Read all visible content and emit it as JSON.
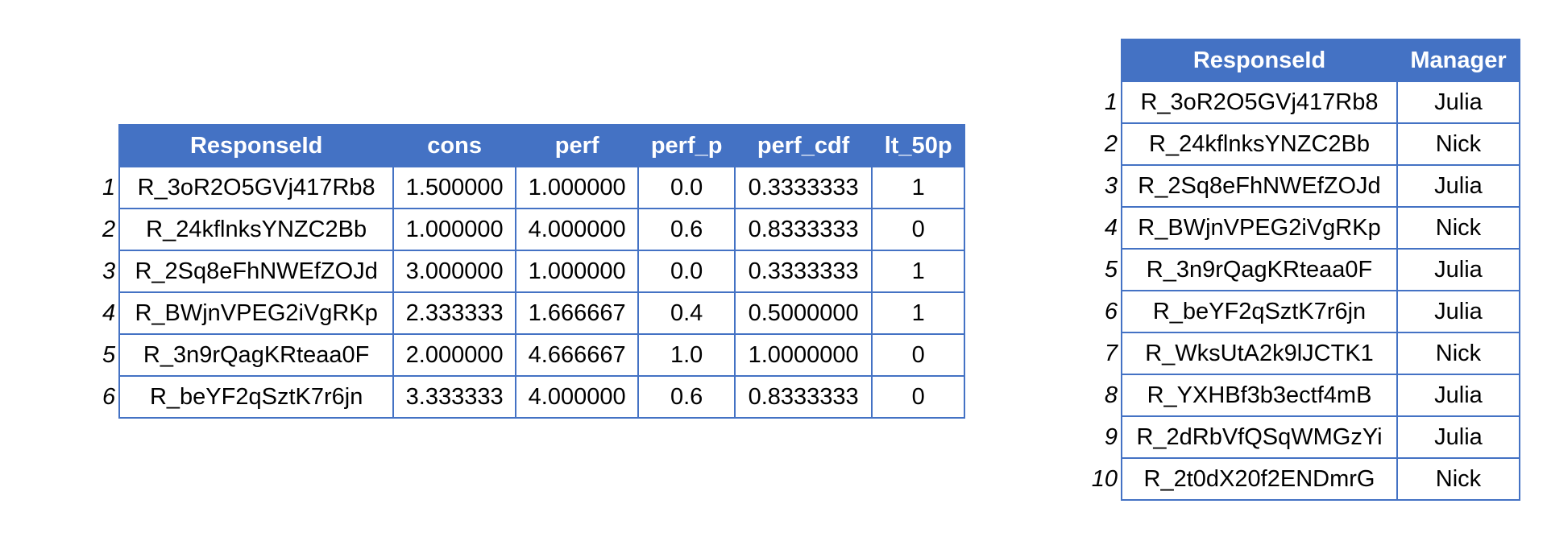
{
  "left_table": {
    "columns": [
      "ResponseId",
      "cons",
      "perf",
      "perf_p",
      "perf_cdf",
      "lt_50p"
    ],
    "rows": [
      {
        "index": "1",
        "cells": [
          "R_3oR2O5GVj417Rb8",
          "1.500000",
          "1.000000",
          "0.0",
          "0.3333333",
          "1"
        ]
      },
      {
        "index": "2",
        "cells": [
          "R_24kflnksYNZC2Bb",
          "1.000000",
          "4.000000",
          "0.6",
          "0.8333333",
          "0"
        ]
      },
      {
        "index": "3",
        "cells": [
          "R_2Sq8eFhNWEfZOJd",
          "3.000000",
          "1.000000",
          "0.0",
          "0.3333333",
          "1"
        ]
      },
      {
        "index": "4",
        "cells": [
          "R_BWjnVPEG2iVgRKp",
          "2.333333",
          "1.666667",
          "0.4",
          "0.5000000",
          "1"
        ]
      },
      {
        "index": "5",
        "cells": [
          "R_3n9rQagKRteaa0F",
          "2.000000",
          "4.666667",
          "1.0",
          "1.0000000",
          "0"
        ]
      },
      {
        "index": "6",
        "cells": [
          "R_beYF2qSztK7r6jn",
          "3.333333",
          "4.000000",
          "0.6",
          "0.8333333",
          "0"
        ]
      }
    ]
  },
  "right_table": {
    "columns": [
      "ResponseId",
      "Manager"
    ],
    "rows": [
      {
        "index": "1",
        "cells": [
          "R_3oR2O5GVj417Rb8",
          "Julia"
        ]
      },
      {
        "index": "2",
        "cells": [
          "R_24kflnksYNZC2Bb",
          "Nick"
        ]
      },
      {
        "index": "3",
        "cells": [
          "R_2Sq8eFhNWEfZOJd",
          "Julia"
        ]
      },
      {
        "index": "4",
        "cells": [
          "R_BWjnVPEG2iVgRKp",
          "Nick"
        ]
      },
      {
        "index": "5",
        "cells": [
          "R_3n9rQagKRteaa0F",
          "Julia"
        ]
      },
      {
        "index": "6",
        "cells": [
          "R_beYF2qSztK7r6jn",
          "Julia"
        ]
      },
      {
        "index": "7",
        "cells": [
          "R_WksUtA2k9lJCTK1",
          "Nick"
        ]
      },
      {
        "index": "8",
        "cells": [
          "R_YXHBf3b3ectf4mB",
          "Julia"
        ]
      },
      {
        "index": "9",
        "cells": [
          "R_2dRbVfQSqWMGzYi",
          "Julia"
        ]
      },
      {
        "index": "10",
        "cells": [
          "R_2t0dX20f2ENDmrG",
          "Nick"
        ]
      }
    ]
  },
  "colors": {
    "header_bg": "#4472c4",
    "header_text": "#ffffff",
    "border": "#4472c4"
  }
}
